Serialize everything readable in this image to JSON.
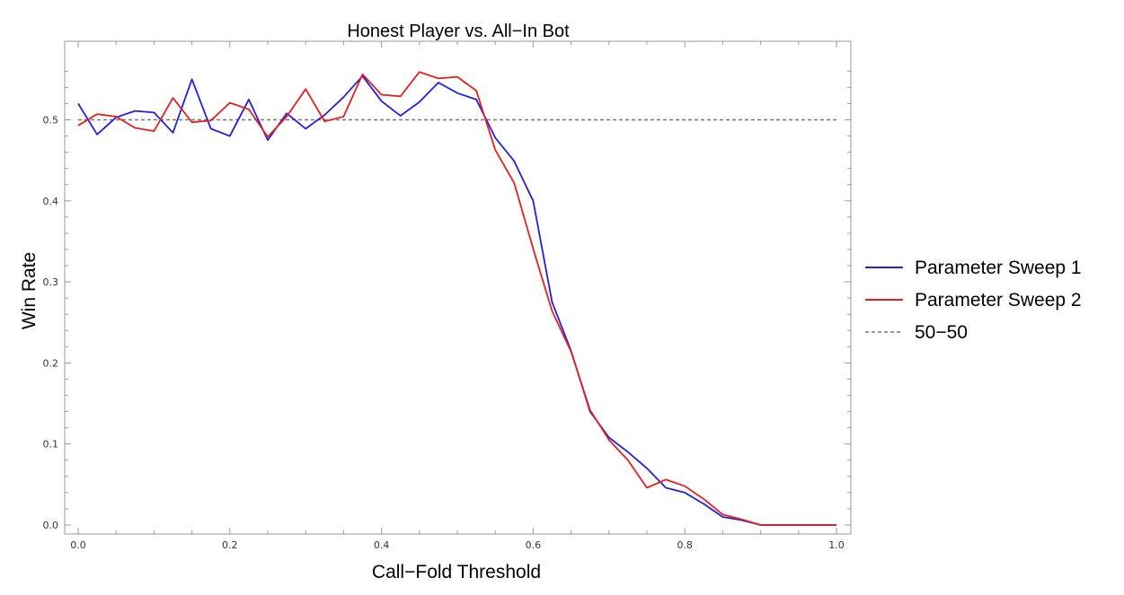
{
  "chart_data": {
    "type": "line",
    "title": "Honest Player vs. All−In Bot",
    "xlabel": "Call−Fold Threshold",
    "ylabel": "Win Rate",
    "xlim": [
      0,
      1
    ],
    "ylim": [
      0,
      0.58
    ],
    "xticks": [
      0.0,
      0.2,
      0.4,
      0.6,
      0.8,
      1.0
    ],
    "xtick_labels": [
      "0.0",
      "0.2",
      "0.4",
      "0.6",
      "0.8",
      "1.0"
    ],
    "yticks": [
      0.0,
      0.1,
      0.2,
      0.3,
      0.4,
      0.5
    ],
    "ytick_labels": [
      "0.0",
      "0.1",
      "0.2",
      "0.3",
      "0.4",
      "0.5"
    ],
    "grid": false,
    "legend_position": "right",
    "x": [
      0,
      0.025,
      0.05,
      0.075,
      0.1,
      0.125,
      0.15,
      0.175,
      0.2,
      0.225,
      0.25,
      0.275,
      0.3,
      0.325,
      0.35,
      0.375,
      0.4,
      0.425,
      0.45,
      0.475,
      0.5,
      0.525,
      0.55,
      0.575,
      0.6,
      0.625,
      0.65,
      0.675,
      0.7,
      0.725,
      0.75,
      0.775,
      0.8,
      0.825,
      0.85,
      0.875,
      0.9,
      0.925,
      0.95,
      0.975,
      1.0
    ],
    "series": [
      {
        "name": "Parameter Sweep 1",
        "color": "#1f1fe6",
        "dash": "solid",
        "values": [
          0.52,
          0.482,
          0.503,
          0.511,
          0.509,
          0.484,
          0.55,
          0.489,
          0.48,
          0.525,
          0.475,
          0.508,
          0.489,
          0.506,
          0.528,
          0.554,
          0.523,
          0.505,
          0.522,
          0.546,
          0.533,
          0.525,
          0.478,
          0.449,
          0.4,
          0.275,
          0.215,
          0.14,
          0.108,
          0.09,
          0.07,
          0.046,
          0.04,
          0.026,
          0.01,
          0.006,
          0.0,
          0.0,
          0.0,
          0.0,
          0.0
        ]
      },
      {
        "name": "Parameter Sweep 2",
        "color": "#e61e1e",
        "dash": "solid",
        "values": [
          0.493,
          0.507,
          0.504,
          0.49,
          0.486,
          0.527,
          0.497,
          0.499,
          0.521,
          0.513,
          0.479,
          0.504,
          0.538,
          0.498,
          0.504,
          0.556,
          0.531,
          0.529,
          0.559,
          0.551,
          0.553,
          0.536,
          0.463,
          0.422,
          0.341,
          0.264,
          0.214,
          0.142,
          0.105,
          0.08,
          0.046,
          0.056,
          0.048,
          0.032,
          0.013,
          0.007,
          0.0,
          0.0,
          0.0,
          0.0,
          0.0
        ]
      },
      {
        "name": "50−50",
        "color": "#777777",
        "dash": "dashed",
        "values": [
          0.5,
          0.5,
          0.5,
          0.5,
          0.5,
          0.5,
          0.5,
          0.5,
          0.5,
          0.5,
          0.5,
          0.5,
          0.5,
          0.5,
          0.5,
          0.5,
          0.5,
          0.5,
          0.5,
          0.5,
          0.5,
          0.5,
          0.5,
          0.5,
          0.5,
          0.5,
          0.5,
          0.5,
          0.5,
          0.5,
          0.5,
          0.5,
          0.5,
          0.5,
          0.5,
          0.5,
          0.5,
          0.5,
          0.5,
          0.5,
          0.5
        ]
      }
    ]
  }
}
